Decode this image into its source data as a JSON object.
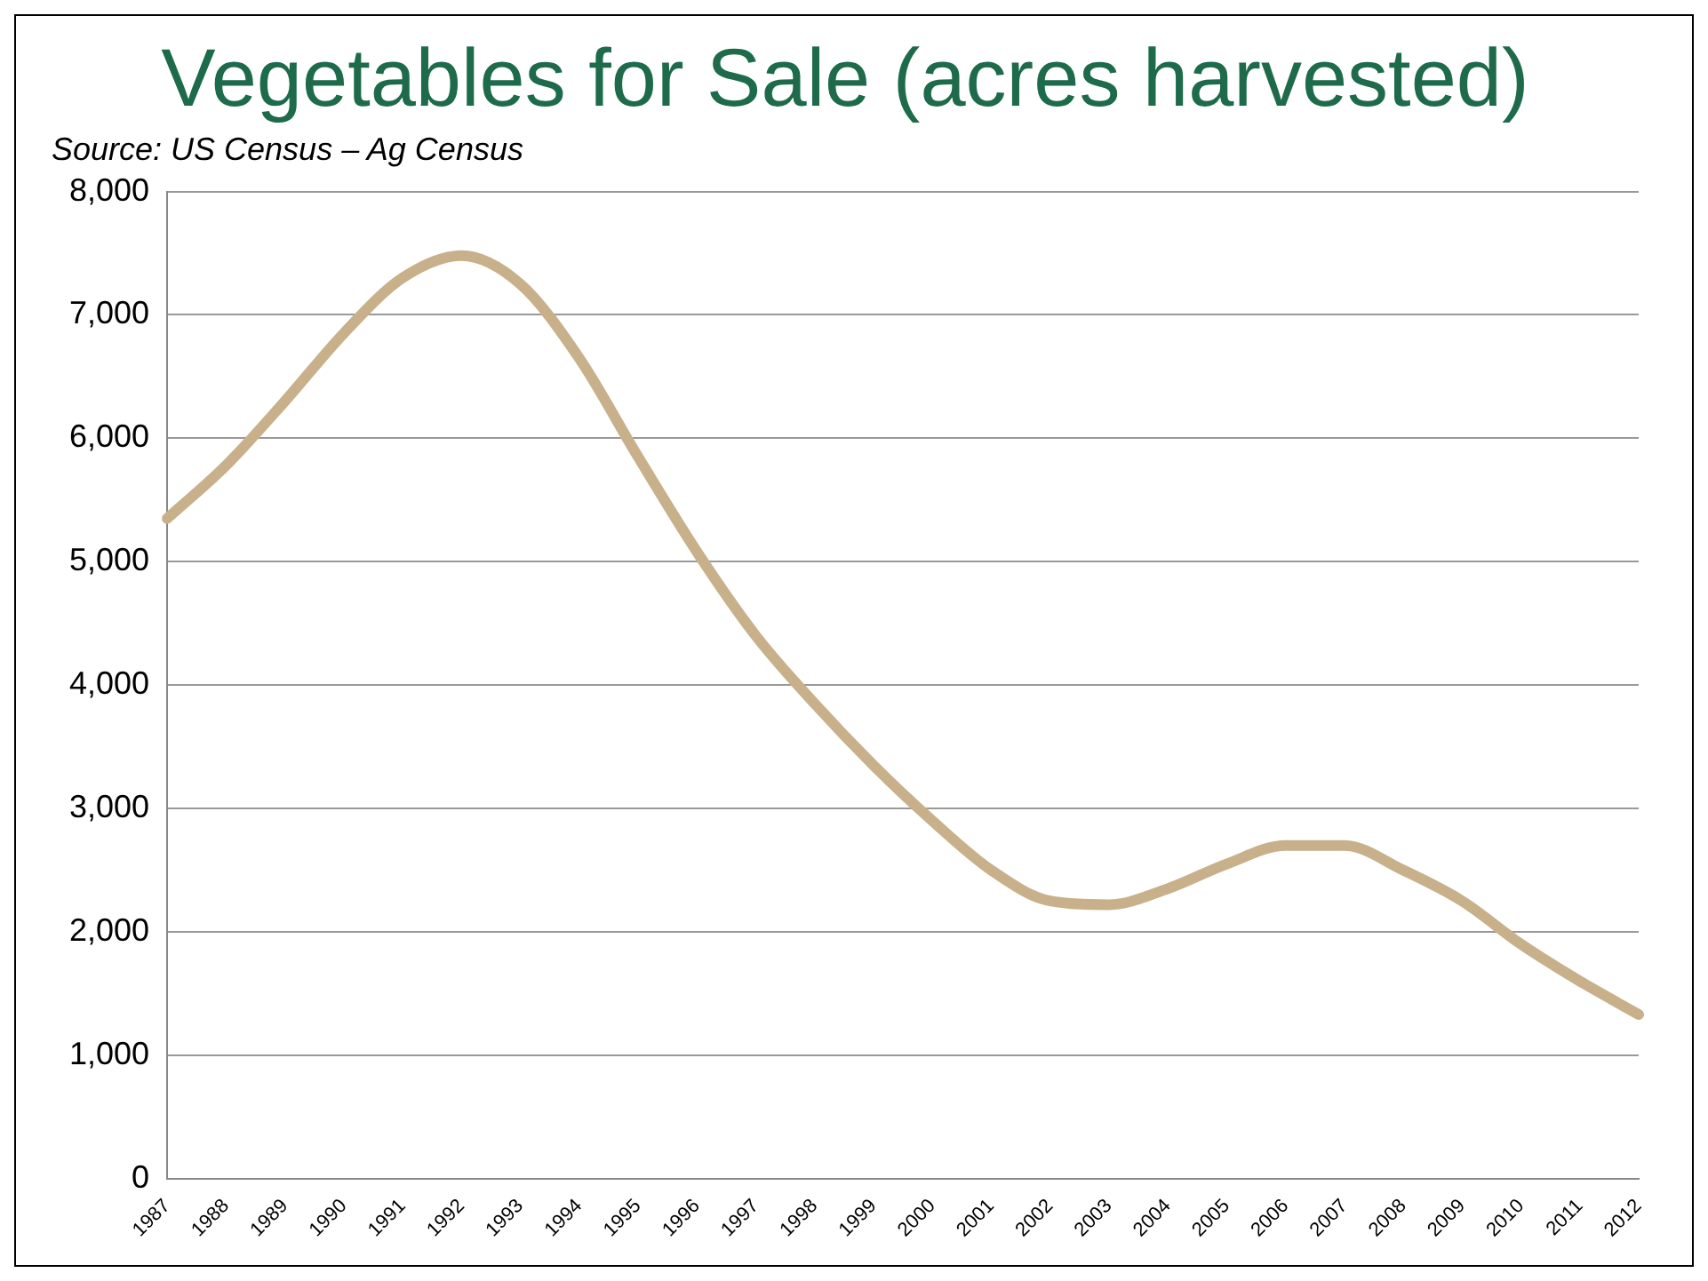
{
  "chart_data": {
    "type": "line",
    "title": "Vegetables for Sale (acres harvested)",
    "annotations": [
      "Source: US Census – Ag Census"
    ],
    "categories": [
      "1987",
      "1988",
      "1989",
      "1990",
      "1991",
      "1992",
      "1993",
      "1994",
      "1995",
      "1996",
      "1997",
      "1998",
      "1999",
      "2000",
      "2001",
      "2002",
      "2003",
      "2004",
      "2005",
      "2006",
      "2007",
      "2008",
      "2009",
      "2010",
      "2011",
      "2012"
    ],
    "series": [
      {
        "color": "#c8b08a",
        "values": [
          5350,
          5780,
          6300,
          6850,
          7300,
          7480,
          7250,
          6650,
          5850,
          5080,
          4400,
          3850,
          3350,
          2900,
          2500,
          2250,
          2220,
          2350,
          2550,
          2700,
          2700,
          2500,
          2250,
          1900,
          1600,
          1330
        ]
      }
    ],
    "ylim": [
      0,
      8000
    ],
    "yticks": [
      {
        "value": 0,
        "label": "0"
      },
      {
        "value": 1000,
        "label": "1,000"
      },
      {
        "value": 2000,
        "label": "2,000"
      },
      {
        "value": 3000,
        "label": "3,000"
      },
      {
        "value": 4000,
        "label": "4,000"
      },
      {
        "value": 5000,
        "label": "5,000"
      },
      {
        "value": 6000,
        "label": "6,000"
      },
      {
        "value": 7000,
        "label": "7,000"
      },
      {
        "value": 8000,
        "label": "8,000"
      }
    ],
    "grid": "y",
    "legend": false,
    "marker": "none",
    "line_style": "solid"
  }
}
